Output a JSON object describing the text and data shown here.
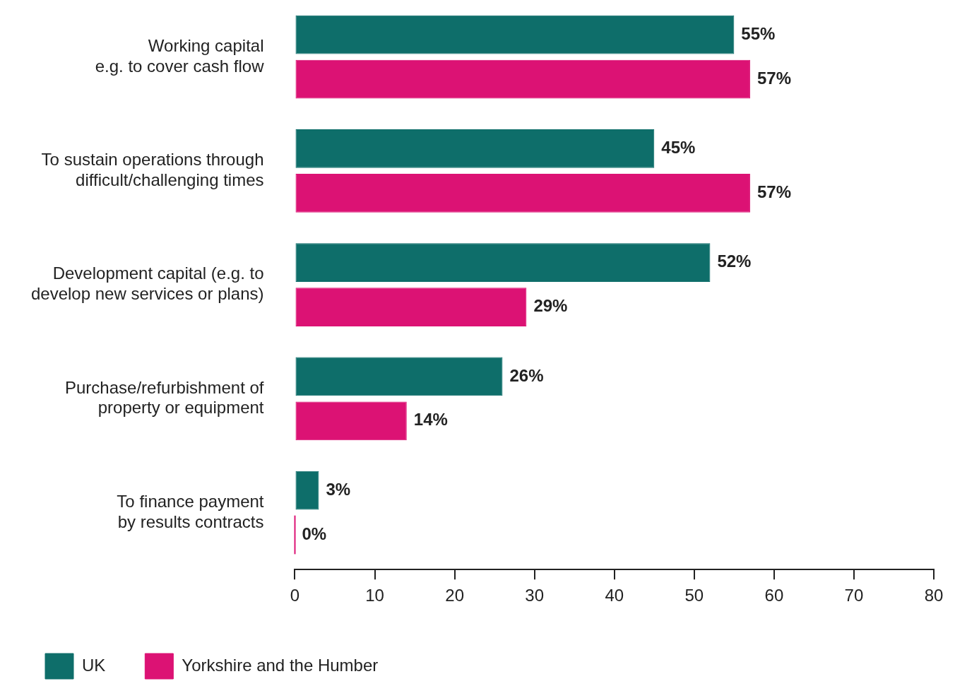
{
  "chart_data": {
    "type": "bar",
    "orientation": "horizontal",
    "categories": [
      "Working capital\ne.g. to cover cash flow",
      "To sustain operations through\ndifficult/challenging times",
      "Development capital (e.g. to\ndevelop new services or plans)",
      "Purchase/refurbishment of\nproperty or equipment",
      "To finance payment\nby results contracts"
    ],
    "series": [
      {
        "name": "UK",
        "color": "#0e6e6a",
        "values": [
          55,
          45,
          52,
          26,
          3
        ],
        "value_labels": [
          "55%",
          "45%",
          "52%",
          "26%",
          "3%"
        ]
      },
      {
        "name": "Yorkshire and the Humber",
        "color": "#dc1274",
        "values": [
          57,
          57,
          29,
          14,
          0
        ],
        "value_labels": [
          "57%",
          "57%",
          "29%",
          "14%",
          "0%"
        ]
      }
    ],
    "xlim": [
      0,
      80
    ],
    "xticks": [
      0,
      10,
      20,
      30,
      40,
      50,
      60,
      70,
      80
    ],
    "grid": false,
    "legend": "bottom left"
  }
}
